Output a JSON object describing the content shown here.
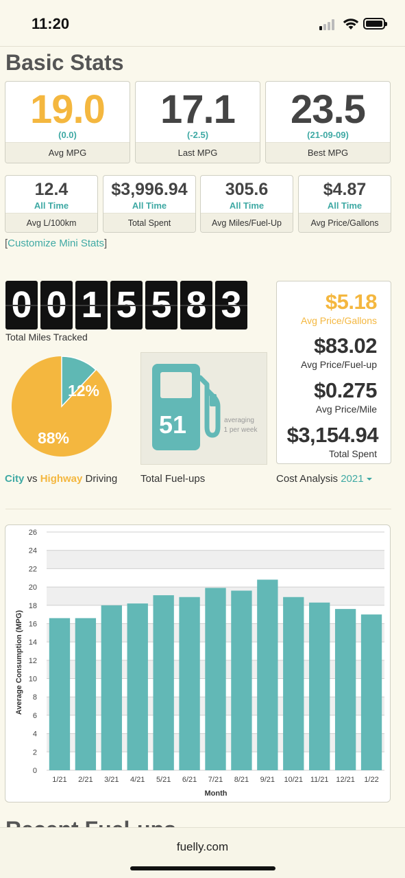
{
  "status": {
    "time": "11:20"
  },
  "basic_stats": {
    "title": "Basic Stats",
    "cards": [
      {
        "value": "19.0",
        "sub": "(0.0)",
        "label": "Avg MPG",
        "highlight": true
      },
      {
        "value": "17.1",
        "sub": "(-2.5)",
        "label": "Last MPG"
      },
      {
        "value": "23.5",
        "sub": "(21-09-09)",
        "label": "Best MPG"
      }
    ],
    "mini": [
      {
        "value": "12.4",
        "sub": "All Time",
        "label": "Avg L/100km"
      },
      {
        "value": "$3,996.94",
        "sub": "All Time",
        "label": "Total Spent"
      },
      {
        "value": "305.6",
        "sub": "All Time",
        "label": "Avg Miles/Fuel-Up"
      },
      {
        "value": "$4.87",
        "sub": "All Time",
        "label": "Avg Price/Gallons"
      }
    ],
    "customize_open": "[",
    "customize_link": "Customize Mini Stats",
    "customize_close": "]"
  },
  "odometer": {
    "digits": [
      "0",
      "0",
      "1",
      "5",
      "5",
      "8",
      "3"
    ],
    "label": "Total Miles Tracked"
  },
  "driving": {
    "city_pct": 12,
    "highway_pct": 88,
    "city_label": "12%",
    "highway_label": "88%",
    "caption_city": "City",
    "caption_vs": " vs ",
    "caption_highway": "Highway",
    "caption_rest": " Driving",
    "colors": {
      "city": "#5fb8b4",
      "highway": "#f4b73f"
    }
  },
  "fuelups": {
    "count": "51",
    "note_1": "averaging",
    "note_2": "1 per week",
    "label": "Total Fuel-ups"
  },
  "cost": {
    "items": [
      {
        "value": "$5.18",
        "label": "Avg Price/Gallons",
        "highlight": true
      },
      {
        "value": "$83.02",
        "label": "Avg Price/Fuel-up"
      },
      {
        "value": "$0.275",
        "label": "Avg Price/Mile"
      },
      {
        "value": "$3,154.94",
        "label": "Total Spent"
      }
    ],
    "caption": "Cost Analysis",
    "year": "2021"
  },
  "chart_data": {
    "type": "bar",
    "categories": [
      "1/21",
      "2/21",
      "3/21",
      "4/21",
      "5/21",
      "6/21",
      "7/21",
      "8/21",
      "9/21",
      "10/21",
      "11/21",
      "12/21",
      "1/22"
    ],
    "values": [
      16.6,
      16.6,
      18.0,
      18.2,
      19.1,
      18.9,
      19.9,
      19.6,
      20.8,
      18.9,
      18.3,
      17.6,
      17.0
    ],
    "xlabel": "Month",
    "ylabel": "Average Consumption (MPG)",
    "ylim": [
      0,
      26
    ],
    "yticks": [
      0,
      2,
      4,
      6,
      8,
      10,
      12,
      14,
      16,
      18,
      20,
      22,
      24,
      26
    ],
    "grid": true,
    "bar_color": "#62b8b6"
  },
  "recent": {
    "title": "Recent Fuel-ups"
  },
  "browser": {
    "url": "fuelly.com"
  }
}
